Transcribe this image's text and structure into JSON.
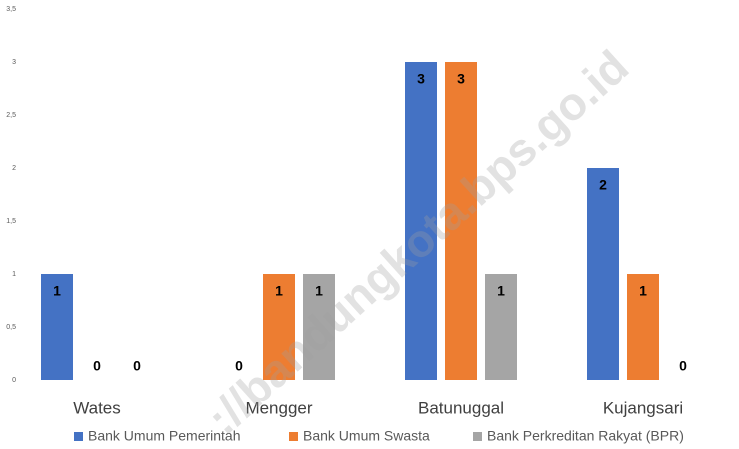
{
  "chart_data": {
    "type": "bar",
    "categories": [
      "Wates",
      "Mengger",
      "Batunuggal",
      "Kujangsari"
    ],
    "series": [
      {
        "name": "Bank Umum Pemerintah",
        "color": "#4472c4",
        "values": [
          1,
          0,
          3,
          2
        ]
      },
      {
        "name": "Bank Umum Swasta",
        "color": "#ed7d31",
        "values": [
          0,
          1,
          3,
          1
        ]
      },
      {
        "name": "Bank Perkreditan Rakyat (BPR)",
        "color": "#a5a5a5",
        "values": [
          0,
          1,
          1,
          0
        ]
      }
    ],
    "ylim": [
      0,
      3.5
    ],
    "yticks": [
      0,
      {
        "value": 0.5,
        "label": "0,5"
      },
      1,
      {
        "value": 1.5,
        "label": "1,5"
      },
      2,
      {
        "value": 2.5,
        "label": "2,5"
      },
      3,
      {
        "value": 3.5,
        "label": "3,5"
      }
    ],
    "grid": false,
    "legend": "bottom",
    "watermark": "://bandungkota.bps.go.id"
  }
}
